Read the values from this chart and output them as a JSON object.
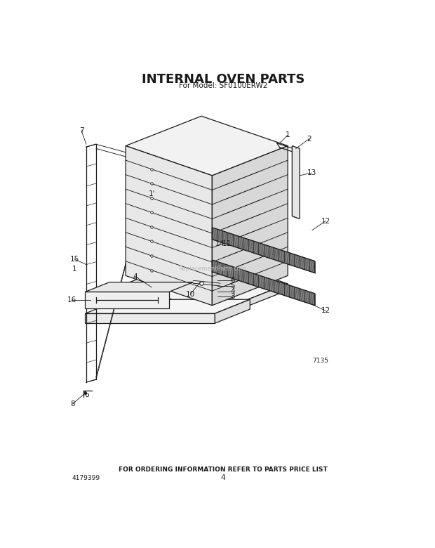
{
  "title": "INTERNAL OVEN PARTS",
  "subtitle": "For Model: SF0100ERW2",
  "footer_text": "FOR ORDERING INFORMATION REFER TO PARTS PRICE LIST",
  "part_number": "4179399",
  "page_number": "4",
  "diagram_code": "7135",
  "bg_color": "#ffffff",
  "line_color": "#1a1a1a",
  "text_color": "#1a1a1a",
  "watermark": "ReplacementParts.com",
  "title_fontsize": 13,
  "subtitle_fontsize": 7.5,
  "footer_fontsize": 6.5,
  "label_fontsize": 7.5
}
